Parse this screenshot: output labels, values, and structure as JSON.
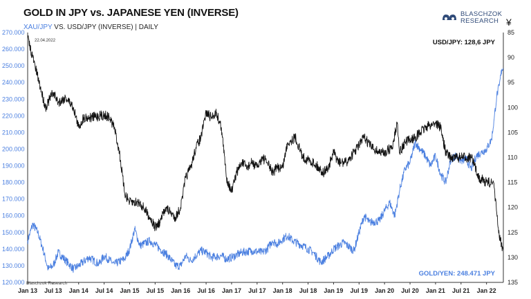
{
  "chart_data": {
    "type": "line",
    "title": "GOLD IN JPY vs. JAPANESE YEN (INVERSE)",
    "subtitle_blue": "XAU/JPY",
    "subtitle_rest": " VS. USD/JPY (INVERSE) | DAILY",
    "annotation_date": "22.04.2022",
    "usd_label": "USD/JPY: 128,6 JPY",
    "gold_label": "GOLD/YEN: 248.471 JPY",
    "source": "Blaschzok Research",
    "currency_symbol": "¥",
    "left_axis": {
      "ticks": [
        "120.000",
        "130.000",
        "140.000",
        "150.000",
        "160.000",
        "170.000",
        "180.000",
        "190.000",
        "200.000",
        "210.000",
        "220.000",
        "230.000",
        "240.000",
        "250.000",
        "260.000",
        "270.000"
      ],
      "range": [
        120000,
        270000
      ]
    },
    "right_axis": {
      "ticks": [
        "85",
        "90",
        "95",
        "100",
        "105",
        "110",
        "115",
        "120",
        "125",
        "130",
        "135"
      ],
      "range": [
        85,
        135
      ],
      "inverted": true
    },
    "x_axis": {
      "ticks": [
        "Jan 13",
        "Jul 13",
        "Jan 14",
        "Jul 14",
        "Jan 15",
        "Jul 15",
        "Jan 16",
        "Jul 16",
        "Jan 17",
        "Jul 17",
        "Jan 18",
        "Jul 18",
        "Jan 19",
        "Jul 19",
        "Jan 20",
        "Jul 20",
        "Jan 21",
        "Jul 21",
        "Jan 22"
      ],
      "range": [
        2013.0,
        2022.33
      ]
    },
    "series": [
      {
        "name": "USD/JPY (inverse)",
        "axis": "right",
        "color": "#111111",
        "points": [
          [
            2013.0,
            86
          ],
          [
            2013.1,
            90
          ],
          [
            2013.25,
            96
          ],
          [
            2013.35,
            100
          ],
          [
            2013.4,
            99
          ],
          [
            2013.5,
            97
          ],
          [
            2013.6,
            99
          ],
          [
            2013.75,
            98
          ],
          [
            2013.9,
            100
          ],
          [
            2014.0,
            104
          ],
          [
            2014.1,
            102
          ],
          [
            2014.25,
            102
          ],
          [
            2014.5,
            101.5
          ],
          [
            2014.6,
            102
          ],
          [
            2014.7,
            104
          ],
          [
            2014.8,
            109
          ],
          [
            2014.9,
            117
          ],
          [
            2015.0,
            119
          ],
          [
            2015.2,
            119
          ],
          [
            2015.4,
            122
          ],
          [
            2015.5,
            124
          ],
          [
            2015.6,
            123
          ],
          [
            2015.7,
            120
          ],
          [
            2015.8,
            121
          ],
          [
            2015.9,
            122
          ],
          [
            2016.0,
            120
          ],
          [
            2016.1,
            114
          ],
          [
            2016.2,
            112
          ],
          [
            2016.3,
            108
          ],
          [
            2016.4,
            106
          ],
          [
            2016.5,
            101
          ],
          [
            2016.6,
            102
          ],
          [
            2016.7,
            101
          ],
          [
            2016.8,
            104
          ],
          [
            2016.9,
            114
          ],
          [
            2017.0,
            117
          ],
          [
            2017.1,
            113
          ],
          [
            2017.2,
            111
          ],
          [
            2017.3,
            112
          ],
          [
            2017.4,
            111
          ],
          [
            2017.5,
            112
          ],
          [
            2017.6,
            110
          ],
          [
            2017.7,
            111
          ],
          [
            2017.8,
            113
          ],
          [
            2017.9,
            112
          ],
          [
            2018.0,
            112
          ],
          [
            2018.1,
            107
          ],
          [
            2018.25,
            106
          ],
          [
            2018.4,
            110
          ],
          [
            2018.6,
            111
          ],
          [
            2018.8,
            113
          ],
          [
            2018.9,
            112
          ],
          [
            2019.0,
            109
          ],
          [
            2019.1,
            111
          ],
          [
            2019.25,
            111
          ],
          [
            2019.4,
            109
          ],
          [
            2019.6,
            106
          ],
          [
            2019.75,
            108
          ],
          [
            2019.9,
            109
          ],
          [
            2020.0,
            109
          ],
          [
            2020.15,
            108
          ],
          [
            2020.25,
            103
          ],
          [
            2020.3,
            109
          ],
          [
            2020.4,
            107
          ],
          [
            2020.6,
            106
          ],
          [
            2020.8,
            104
          ],
          [
            2021.0,
            103
          ],
          [
            2021.1,
            104
          ],
          [
            2021.2,
            109
          ],
          [
            2021.3,
            110
          ],
          [
            2021.5,
            110
          ],
          [
            2021.7,
            110
          ],
          [
            2021.85,
            114
          ],
          [
            2022.0,
            115
          ],
          [
            2022.1,
            115
          ],
          [
            2022.15,
            116
          ],
          [
            2022.2,
            121
          ],
          [
            2022.25,
            126
          ],
          [
            2022.33,
            128.6
          ]
        ]
      },
      {
        "name": "XAU/JPY",
        "axis": "left",
        "color": "#4a7fe0",
        "points": [
          [
            2013.0,
            145000
          ],
          [
            2013.1,
            155000
          ],
          [
            2013.2,
            150000
          ],
          [
            2013.3,
            140000
          ],
          [
            2013.4,
            128000
          ],
          [
            2013.5,
            130000
          ],
          [
            2013.6,
            138000
          ],
          [
            2013.75,
            133000
          ],
          [
            2013.9,
            128000
          ],
          [
            2014.0,
            130000
          ],
          [
            2014.2,
            135000
          ],
          [
            2014.4,
            131000
          ],
          [
            2014.5,
            136000
          ],
          [
            2014.7,
            131000
          ],
          [
            2014.9,
            134000
          ],
          [
            2015.0,
            140000
          ],
          [
            2015.1,
            152000
          ],
          [
            2015.2,
            142000
          ],
          [
            2015.4,
            145000
          ],
          [
            2015.6,
            140000
          ],
          [
            2015.75,
            136000
          ],
          [
            2015.9,
            130000
          ],
          [
            2016.0,
            130000
          ],
          [
            2016.1,
            136000
          ],
          [
            2016.2,
            133000
          ],
          [
            2016.4,
            139000
          ],
          [
            2016.5,
            138000
          ],
          [
            2016.6,
            135000
          ],
          [
            2016.8,
            136000
          ],
          [
            2016.9,
            134000
          ],
          [
            2017.0,
            135000
          ],
          [
            2017.2,
            138000
          ],
          [
            2017.4,
            139000
          ],
          [
            2017.6,
            138000
          ],
          [
            2017.7,
            140000
          ],
          [
            2017.8,
            145000
          ],
          [
            2017.9,
            143000
          ],
          [
            2018.0,
            146000
          ],
          [
            2018.1,
            148000
          ],
          [
            2018.2,
            145000
          ],
          [
            2018.4,
            142000
          ],
          [
            2018.6,
            138000
          ],
          [
            2018.75,
            132000
          ],
          [
            2018.9,
            136000
          ],
          [
            2019.0,
            140000
          ],
          [
            2019.2,
            144000
          ],
          [
            2019.4,
            139000
          ],
          [
            2019.5,
            150000
          ],
          [
            2019.6,
            160000
          ],
          [
            2019.7,
            156000
          ],
          [
            2019.9,
            157000
          ],
          [
            2020.0,
            163000
          ],
          [
            2020.1,
            168000
          ],
          [
            2020.2,
            160000
          ],
          [
            2020.3,
            176000
          ],
          [
            2020.4,
            188000
          ],
          [
            2020.5,
            192000
          ],
          [
            2020.6,
            204000
          ],
          [
            2020.7,
            200000
          ],
          [
            2020.8,
            196000
          ],
          [
            2020.9,
            190000
          ],
          [
            2021.0,
            196000
          ],
          [
            2021.1,
            185000
          ],
          [
            2021.2,
            180000
          ],
          [
            2021.3,
            194000
          ],
          [
            2021.4,
            196000
          ],
          [
            2021.5,
            193000
          ],
          [
            2021.6,
            194000
          ],
          [
            2021.7,
            188000
          ],
          [
            2021.8,
            196000
          ],
          [
            2021.9,
            198000
          ],
          [
            2022.0,
            200000
          ],
          [
            2022.1,
            206000
          ],
          [
            2022.15,
            218000
          ],
          [
            2022.2,
            232000
          ],
          [
            2022.25,
            238000
          ],
          [
            2022.3,
            248000
          ],
          [
            2022.33,
            248471
          ]
        ]
      }
    ]
  }
}
